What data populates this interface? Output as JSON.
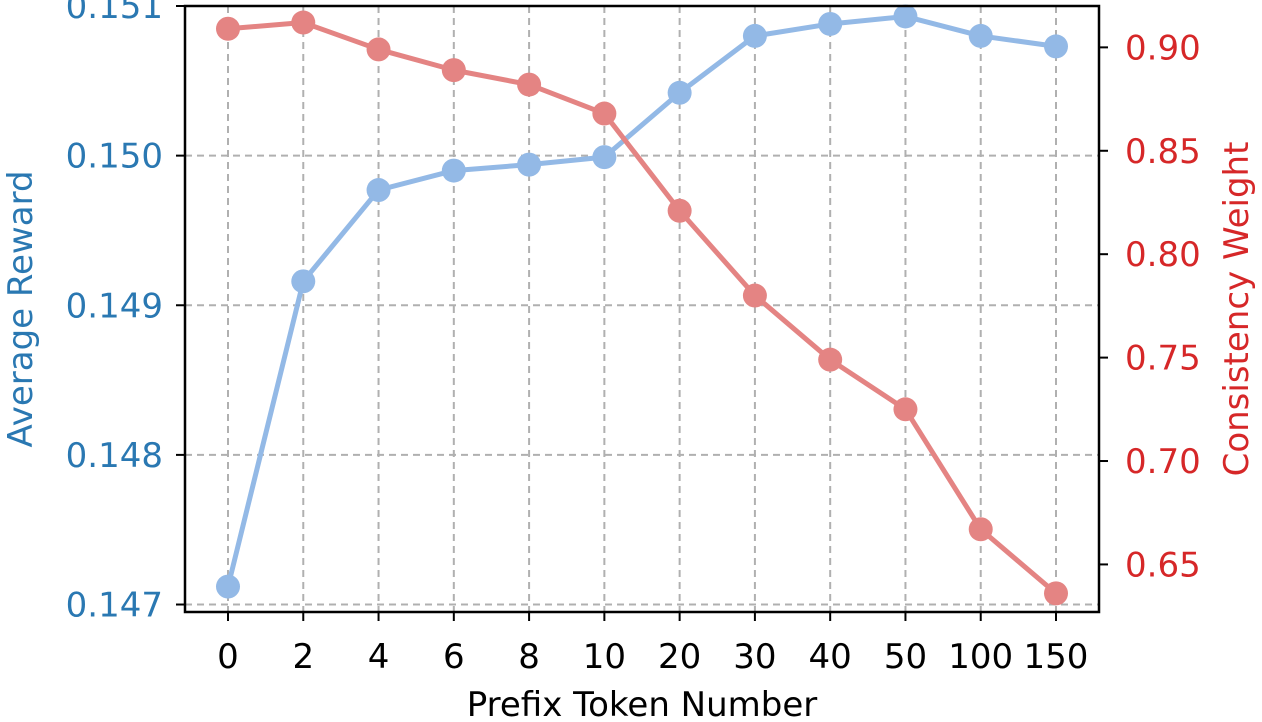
{
  "chart_data": {
    "type": "line",
    "xlabel": "Prefix Token Number",
    "ylabel_left": "Average Reward",
    "ylabel_right": "Consistency Weight",
    "categories": [
      "0",
      "2",
      "4",
      "6",
      "8",
      "10",
      "20",
      "30",
      "40",
      "50",
      "100",
      "150"
    ],
    "ylim_left": [
      0.14695,
      0.151
    ],
    "ylim_right": [
      0.627,
      0.92
    ],
    "yticks_left": [
      "0.147",
      "0.148",
      "0.149",
      "0.150",
      "0.151"
    ],
    "yticks_right": [
      "0.65",
      "0.70",
      "0.75",
      "0.80",
      "0.85",
      "0.90"
    ],
    "grid": true,
    "grid_style": "dashed",
    "series": [
      {
        "axis": "left",
        "color": "#93b9e6",
        "values": [
          0.14712,
          0.14916,
          0.14977,
          0.1499,
          0.14994,
          0.14999,
          0.15042,
          0.1508,
          0.15088,
          0.15093,
          0.1508,
          0.15073
        ]
      },
      {
        "axis": "right",
        "color": "#e48483",
        "values": [
          0.909,
          0.912,
          0.899,
          0.889,
          0.882,
          0.868,
          0.821,
          0.78,
          0.749,
          0.725,
          0.667,
          0.636
        ]
      }
    ],
    "colors": {
      "left_axis": "#2a78b2",
      "right_axis": "#d62728",
      "grid": "#b0b0b0",
      "frame": "#000000"
    }
  }
}
